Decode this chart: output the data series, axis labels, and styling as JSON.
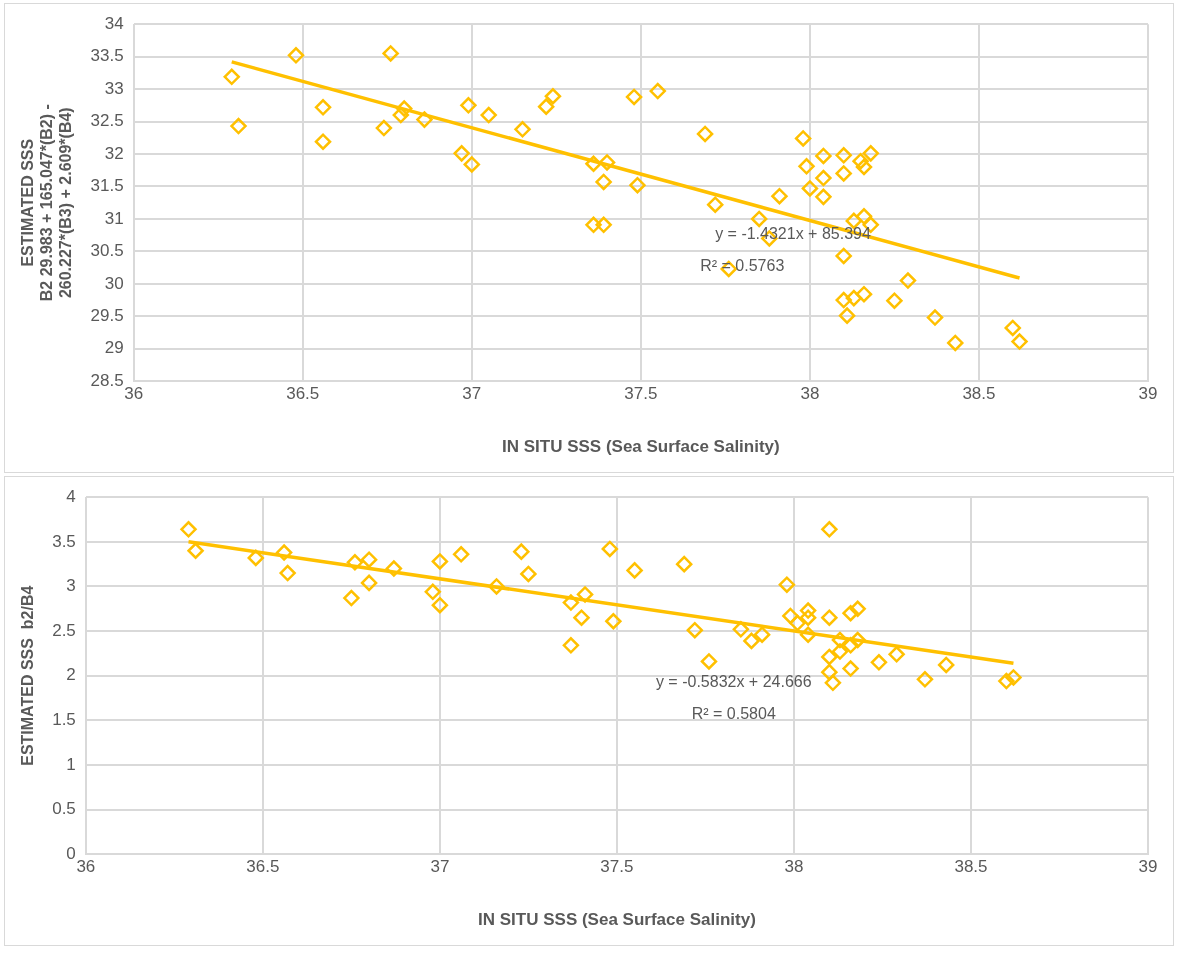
{
  "chart_data": [
    {
      "type": "scatter",
      "xlabel": "IN SITU SSS (Sea Surface Salinity)",
      "ylabel": "ESTIMATED SSS\nB2 29.983 + 165.047*(B2) -\n260.227*(B3) + 2.609*(B4)",
      "xlim": [
        36,
        39
      ],
      "xticks": [
        36,
        36.5,
        37,
        37.5,
        38,
        38.5,
        39
      ],
      "ylim": [
        28.5,
        34
      ],
      "yticks": [
        28.5,
        29,
        29.5,
        30,
        30.5,
        31,
        31.5,
        32,
        32.5,
        33,
        33.5,
        34
      ],
      "grid": true,
      "legend": false,
      "series": [
        {
          "marker": "diamond",
          "color": "#ffc000",
          "x": [
            36.29,
            36.31,
            36.48,
            36.56,
            36.56,
            36.74,
            36.76,
            36.79,
            36.8,
            36.86,
            36.97,
            36.99,
            37,
            37.05,
            37.15,
            37.22,
            37.24,
            37.36,
            37.4,
            37.39,
            37.36,
            37.39,
            37.49,
            37.48,
            37.55,
            37.69,
            37.72,
            37.85,
            37.88,
            37.76,
            37.91,
            37.98,
            37.99,
            38,
            38.04,
            38.04,
            38.04,
            38.1,
            38.1,
            38.16,
            38.18,
            38.15,
            38.13,
            38.16,
            38.18,
            38.1,
            38.1,
            38.13,
            38.16,
            38.11,
            38.25,
            38.29,
            38.37,
            38.43,
            38.6,
            38.62
          ],
          "values": [
            33.19,
            32.43,
            33.52,
            32.72,
            32.19,
            32.4,
            33.55,
            32.6,
            32.7,
            32.53,
            32.01,
            32.75,
            31.84,
            32.6,
            32.38,
            32.73,
            32.89,
            31.85,
            31.87,
            31.57,
            30.91,
            30.91,
            31.52,
            32.88,
            32.97,
            32.31,
            31.22,
            31,
            30.7,
            30.23,
            31.35,
            32.24,
            31.81,
            31.47,
            31.97,
            31.63,
            31.34,
            31.98,
            31.7,
            31.8,
            32.01,
            31.89,
            30.97,
            31.04,
            30.91,
            30.43,
            29.75,
            29.78,
            29.84,
            29.51,
            29.74,
            30.05,
            29.48,
            29.09,
            29.32,
            29.11
          ]
        },
        {
          "type": "line",
          "marker": "none",
          "color": "#ffc000",
          "x": [
            36.29,
            38.62
          ],
          "values": [
            33.42,
            30.09
          ]
        }
      ],
      "annotations": [
        "y = -1.4321x + 85.394",
        "R² = 0.5763"
      ]
    },
    {
      "type": "scatter",
      "xlabel": "IN SITU SSS (Sea Surface Salinity)",
      "ylabel": "ESTIMATED SSS  b2/B4",
      "xlim": [
        36,
        39
      ],
      "xticks": [
        36,
        36.5,
        37,
        37.5,
        38,
        38.5,
        39
      ],
      "ylim": [
        0,
        4
      ],
      "yticks": [
        0,
        0.5,
        1,
        1.5,
        2,
        2.5,
        3,
        3.5,
        4
      ],
      "grid": true,
      "legend": false,
      "series": [
        {
          "marker": "diamond",
          "color": "#ffc000",
          "x": [
            36.29,
            36.31,
            36.48,
            36.56,
            36.57,
            36.75,
            36.76,
            36.8,
            36.8,
            36.87,
            36.98,
            37,
            37,
            37.06,
            37.16,
            37.23,
            37.25,
            37.37,
            37.41,
            37.4,
            37.37,
            37.48,
            37.49,
            37.55,
            37.69,
            37.72,
            37.76,
            37.85,
            37.88,
            37.91,
            37.98,
            37.99,
            38.01,
            38.04,
            38.04,
            38.04,
            38.1,
            38.1,
            38.1,
            38.1,
            38.11,
            38.13,
            38.13,
            38.16,
            38.18,
            38.16,
            38.18,
            38.16,
            38.24,
            38.29,
            38.37,
            38.43,
            38.6,
            38.62
          ],
          "values": [
            3.64,
            3.4,
            3.32,
            3.38,
            3.15,
            2.87,
            3.27,
            3.3,
            3.04,
            3.2,
            2.94,
            3.28,
            2.79,
            3.36,
            3,
            3.39,
            3.14,
            2.82,
            2.91,
            2.65,
            2.34,
            3.42,
            2.61,
            3.18,
            3.25,
            2.51,
            2.16,
            2.52,
            2.39,
            2.46,
            3.02,
            2.67,
            2.59,
            2.73,
            2.65,
            2.46,
            3.64,
            2.65,
            2.21,
            2.04,
            1.92,
            2.4,
            2.27,
            2.7,
            2.75,
            2.34,
            2.4,
            2.08,
            2.15,
            2.24,
            1.96,
            2.12,
            1.94,
            1.98
          ]
        },
        {
          "type": "line",
          "marker": "none",
          "color": "#ffc000",
          "x": [
            36.29,
            38.62
          ],
          "values": [
            3.5,
            2.14
          ]
        }
      ],
      "annotations": [
        "y = -0.5832x + 24.666",
        "R² = 0.5804"
      ]
    }
  ]
}
